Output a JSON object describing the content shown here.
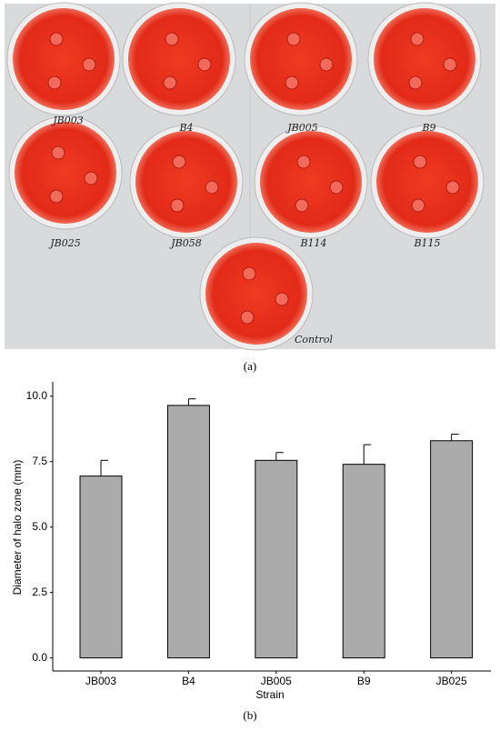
{
  "photo": {
    "plate_labels": [
      "JB003",
      "B4",
      "JB005",
      "B9",
      "JB025",
      "JB058",
      "B114",
      "B115",
      "Control"
    ]
  },
  "captions": [
    "(a)",
    "(b)"
  ],
  "chart_data": {
    "type": "bar",
    "x_label": "Strain",
    "y_label": "Diameter of halo zone (mm)",
    "categories": [
      "JB003",
      "B4",
      "JB005",
      "B9",
      "JB025"
    ],
    "values": [
      6.95,
      9.65,
      7.55,
      7.4,
      8.3
    ],
    "errors": [
      0.6,
      0.25,
      0.3,
      0.75,
      0.25
    ],
    "color": "#ababab",
    "ylim": [
      -0.5,
      10.55
    ],
    "yticks": [
      {
        "value": 0,
        "label": "0.0"
      },
      {
        "value": 2.5,
        "label": "2.5"
      },
      {
        "value": 5,
        "label": "5.0"
      },
      {
        "value": 7.5,
        "label": "7.5"
      },
      {
        "value": 10,
        "label": "10.0"
      }
    ],
    "grid": false
  }
}
